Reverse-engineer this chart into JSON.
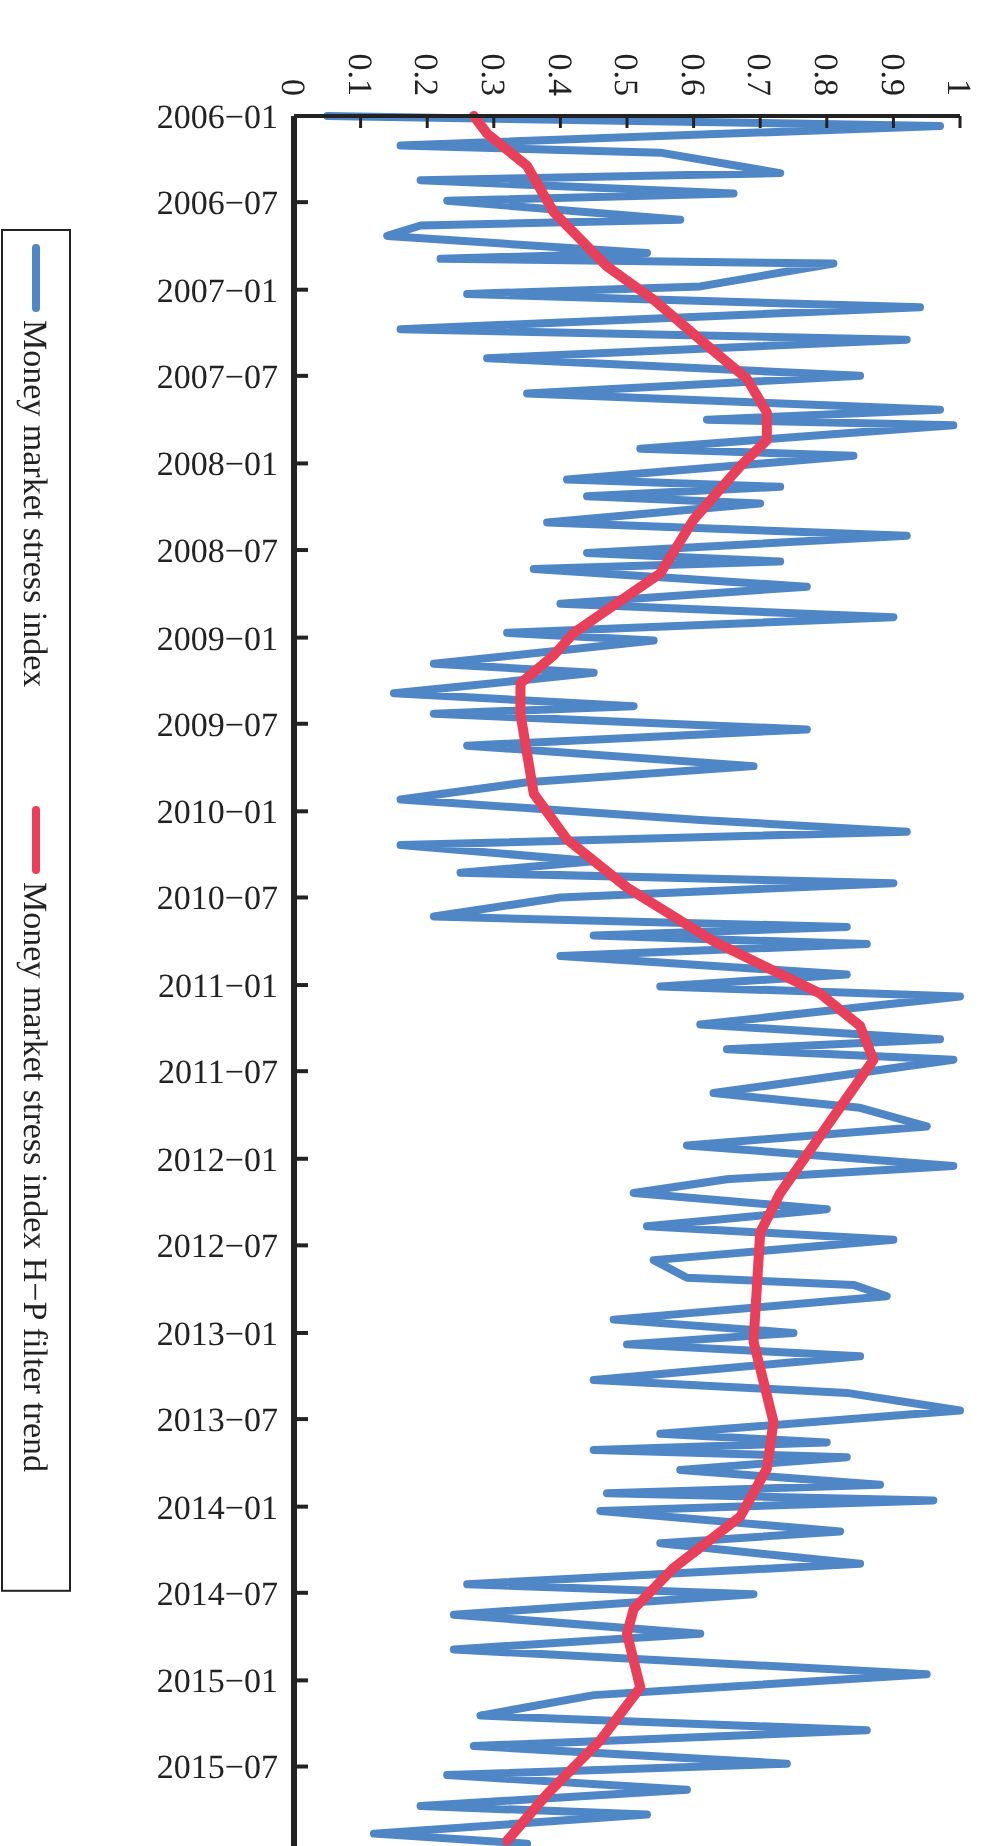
{
  "chart_data": {
    "type": "line",
    "orientation": "horizontal",
    "ylim": [
      "2015-12-15",
      "2006-01-01"
    ],
    "xlim": [
      0,
      1
    ],
    "yticks": [
      {
        "value": "2006-01",
        "label": "2006−01"
      },
      {
        "value": "2006-07",
        "label": "2006−07"
      },
      {
        "value": "2007-01",
        "label": "2007−01"
      },
      {
        "value": "2007-07",
        "label": "2007−07"
      },
      {
        "value": "2008-01",
        "label": "2008−01"
      },
      {
        "value": "2008-07",
        "label": "2008−07"
      },
      {
        "value": "2009-01",
        "label": "2009−01"
      },
      {
        "value": "2009-07",
        "label": "2009−07"
      },
      {
        "value": "2010-01",
        "label": "2010−01"
      },
      {
        "value": "2010-07",
        "label": "2010−07"
      },
      {
        "value": "2011-01",
        "label": "2011−01"
      },
      {
        "value": "2011-07",
        "label": "2011−07"
      },
      {
        "value": "2012-01",
        "label": "2012−01"
      },
      {
        "value": "2012-07",
        "label": "2012−07"
      },
      {
        "value": "2013-01",
        "label": "2013−01"
      },
      {
        "value": "2013-07",
        "label": "2013−07"
      },
      {
        "value": "2014-01",
        "label": "2014−01"
      },
      {
        "value": "2014-07",
        "label": "2014−07"
      },
      {
        "value": "2015-01",
        "label": "2015−01"
      },
      {
        "value": "2015-07",
        "label": "2015−07"
      }
    ],
    "xticks": [
      0,
      0.1,
      0.2,
      0.3,
      0.4,
      0.5,
      0.6,
      0.7,
      0.8,
      0.9,
      1
    ],
    "legend": "left",
    "series": [
      {
        "name": "Money market stress index",
        "color": "#4f86c6",
        "x": [
          "2006-01-01",
          "2006-01-22",
          "2006-03-04",
          "2006-03-19",
          "2006-05-01",
          "2006-05-16",
          "2006-06-13",
          "2006-06-28",
          "2006-08-07",
          "2006-08-19",
          "2006-09-10",
          "2006-10-16",
          "2006-10-28",
          "2006-11-07",
          "2006-12-25",
          "2007-01-10",
          "2007-02-07",
          "2007-03-25",
          "2007-04-16",
          "2007-05-25",
          "2007-07-01",
          "2007-08-07",
          "2007-09-10",
          "2007-10-01",
          "2007-10-13",
          "2007-12-01",
          "2007-12-16",
          "2008-02-04",
          "2008-02-19",
          "2008-03-10",
          "2008-03-25",
          "2008-05-04",
          "2008-06-01",
          "2008-07-07",
          "2008-07-25",
          "2008-08-10",
          "2008-09-16",
          "2008-10-22",
          "2008-11-19",
          "2008-12-22",
          "2009-01-07",
          "2009-02-25",
          "2009-03-16",
          "2009-04-28",
          "2009-05-25",
          "2009-06-10",
          "2009-07-13",
          "2009-08-16",
          "2009-09-28",
          "2009-11-01",
          "2009-12-07",
          "2010-01-19",
          "2010-02-13",
          "2010-03-13",
          "2010-04-16",
          "2010-05-10",
          "2010-06-01",
          "2010-07-01",
          "2010-08-10",
          "2010-09-01",
          "2010-09-19",
          "2010-10-07",
          "2010-11-01",
          "2010-12-10",
          "2011-01-04",
          "2011-01-25",
          "2011-03-25",
          "2011-04-25",
          "2011-05-16",
          "2011-06-07",
          "2011-08-16",
          "2011-09-16",
          "2011-10-25",
          "2011-12-04",
          "2012-01-16",
          "2012-02-13",
          "2012-03-13",
          "2012-04-16",
          "2012-05-22",
          "2012-06-19",
          "2012-08-01",
          "2012-09-07",
          "2012-09-22",
          "2012-10-16",
          "2012-12-04",
          "2013-01-01",
          "2013-01-25",
          "2013-02-19",
          "2013-04-10",
          "2013-05-07",
          "2013-06-13",
          "2013-08-01",
          "2013-08-19",
          "2013-09-04",
          "2013-09-19",
          "2013-10-16",
          "2013-11-16",
          "2013-12-04",
          "2013-12-19",
          "2014-01-10",
          "2014-02-22",
          "2014-03-19",
          "2014-05-01",
          "2014-06-13",
          "2014-07-04",
          "2014-08-16",
          "2014-09-25",
          "2014-10-28",
          "2014-12-19",
          "2015-02-01",
          "2015-03-16",
          "2015-04-16",
          "2015-05-19",
          "2015-06-25",
          "2015-07-19",
          "2015-08-19",
          "2015-09-22",
          "2015-10-10",
          "2015-11-19",
          "2015-12-10"
        ],
        "values": [
          0.05,
          0.97,
          0.16,
          0.55,
          0.73,
          0.19,
          0.66,
          0.23,
          0.58,
          0.19,
          0.14,
          0.53,
          0.22,
          0.81,
          0.61,
          0.26,
          0.94,
          0.16,
          0.92,
          0.29,
          0.85,
          0.35,
          0.97,
          0.62,
          0.99,
          0.52,
          0.84,
          0.41,
          0.73,
          0.44,
          0.7,
          0.38,
          0.92,
          0.44,
          0.73,
          0.36,
          0.77,
          0.4,
          0.9,
          0.32,
          0.54,
          0.21,
          0.45,
          0.15,
          0.51,
          0.21,
          0.77,
          0.26,
          0.69,
          0.35,
          0.16,
          0.61,
          0.92,
          0.16,
          0.45,
          0.25,
          0.9,
          0.4,
          0.21,
          0.83,
          0.45,
          0.86,
          0.4,
          0.83,
          0.55,
          1.0,
          0.61,
          0.97,
          0.65,
          0.99,
          0.63,
          0.85,
          0.95,
          0.59,
          0.99,
          0.65,
          0.51,
          0.8,
          0.53,
          0.9,
          0.54,
          0.59,
          0.84,
          0.89,
          0.48,
          0.75,
          0.5,
          0.85,
          0.45,
          0.83,
          1.0,
          0.55,
          0.8,
          0.45,
          0.83,
          0.58,
          0.88,
          0.47,
          0.96,
          0.46,
          0.82,
          0.55,
          0.85,
          0.26,
          0.69,
          0.24,
          0.61,
          0.24,
          0.95,
          0.45,
          0.28,
          0.86,
          0.27,
          0.74,
          0.23,
          0.59,
          0.19,
          0.53,
          0.12,
          0.35
        ]
      },
      {
        "name": "Money market stress index H−P filter trend",
        "color": "#e8405a",
        "x": [
          "2006-01-01",
          "2006-02-07",
          "2006-04-16",
          "2006-07-22",
          "2006-11-13",
          "2007-01-22",
          "2007-04-28",
          "2007-07-07",
          "2007-09-16",
          "2007-11-13",
          "2008-01-07",
          "2008-04-28",
          "2008-08-19",
          "2008-12-22",
          "2009-02-07",
          "2009-04-07",
          "2009-06-10",
          "2009-11-25",
          "2010-03-01",
          "2010-06-10",
          "2010-10-01",
          "2011-01-19",
          "2011-03-28",
          "2011-06-07",
          "2011-10-25",
          "2012-03-13",
          "2012-06-04",
          "2013-01-19",
          "2013-07-07",
          "2013-10-13",
          "2014-01-22",
          "2014-05-10",
          "2014-08-04",
          "2014-09-25",
          "2015-01-16",
          "2015-05-07",
          "2015-08-28",
          "2015-12-04"
        ],
        "values": [
          0.27,
          0.29,
          0.35,
          0.39,
          0.47,
          0.54,
          0.62,
          0.68,
          0.71,
          0.71,
          0.67,
          0.6,
          0.55,
          0.42,
          0.39,
          0.34,
          0.34,
          0.36,
          0.41,
          0.5,
          0.63,
          0.79,
          0.85,
          0.87,
          0.8,
          0.73,
          0.7,
          0.69,
          0.72,
          0.71,
          0.67,
          0.57,
          0.51,
          0.5,
          0.52,
          0.46,
          0.38,
          0.32
        ]
      }
    ]
  }
}
